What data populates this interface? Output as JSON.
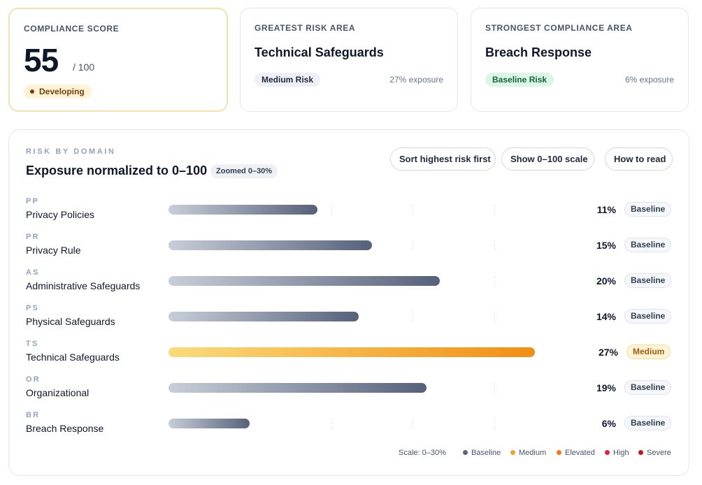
{
  "summary": {
    "score": {
      "eyebrow": "COMPLIANCE SCORE",
      "value": "55",
      "max": "/ 100",
      "status": "Developing"
    },
    "greatest": {
      "eyebrow": "GREATEST RISK AREA",
      "title": "Technical Safeguards",
      "risk": "Medium Risk",
      "exposure": "27% exposure"
    },
    "strongest": {
      "eyebrow": "STRONGEST COMPLIANCE AREA",
      "title": "Breach Response",
      "risk": "Baseline Risk",
      "exposure": "6% exposure"
    }
  },
  "panel": {
    "eyebrow": "RISK BY DOMAIN",
    "title": "Exposure normalized to 0–100",
    "zoom_badge": "Zoomed 0–30%",
    "buttons": {
      "sort": "Sort highest risk first",
      "scale": "Show 0–100 scale",
      "how": "How to read"
    },
    "scale_note": "Scale: 0–30%"
  },
  "chart_data": {
    "type": "bar",
    "orientation": "horizontal",
    "xlim": [
      0,
      30
    ],
    "unit": "%",
    "categories": [
      "Privacy Policies",
      "Privacy Rule",
      "Administrative Safeguards",
      "Physical Safeguards",
      "Technical Safeguards",
      "Organizational",
      "Breach Response"
    ],
    "abbreviations": [
      "PP",
      "PR",
      "AS",
      "PS",
      "TS",
      "OR",
      "BR"
    ],
    "values": [
      11,
      15,
      20,
      14,
      27,
      19,
      6
    ],
    "value_labels": [
      "11%",
      "15%",
      "20%",
      "14%",
      "27%",
      "19%",
      "6%"
    ],
    "levels": [
      "Baseline",
      "Baseline",
      "Baseline",
      "Baseline",
      "Medium",
      "Baseline",
      "Baseline"
    ],
    "legend": [
      {
        "label": "Baseline",
        "color": "#5b6477"
      },
      {
        "label": "Medium",
        "color": "#f0a22a"
      },
      {
        "label": "Elevated",
        "color": "#f07a18"
      },
      {
        "label": "High",
        "color": "#e11d48"
      },
      {
        "label": "Severe",
        "color": "#b91c1c"
      }
    ]
  }
}
